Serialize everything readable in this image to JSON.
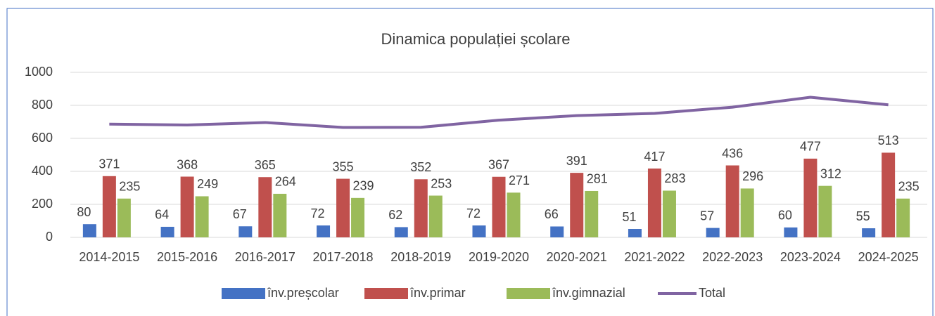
{
  "chart_data": {
    "type": "bar",
    "title": "Dinamica populației școlare",
    "categories": [
      "2014-2015",
      "2015-2016",
      "2016-2017",
      "2017-2018",
      "2018-2019",
      "2019-2020",
      "2020-2021",
      "2021-2022",
      "2022-2023",
      "2023-2024",
      "2024-2025"
    ],
    "series": [
      {
        "name": "înv.preșcolar",
        "color": "#4472c4",
        "type": "bar",
        "values": [
          80,
          64,
          67,
          72,
          62,
          72,
          66,
          51,
          57,
          60,
          55
        ]
      },
      {
        "name": "înv.primar",
        "color": "#c0504d",
        "type": "bar",
        "values": [
          371,
          368,
          365,
          355,
          352,
          367,
          391,
          417,
          436,
          477,
          513
        ]
      },
      {
        "name": "înv.gimnazial",
        "color": "#9bbb59",
        "type": "bar",
        "values": [
          235,
          249,
          264,
          239,
          253,
          271,
          281,
          283,
          296,
          312,
          235
        ]
      },
      {
        "name": "Total",
        "color": "#8064a2",
        "type": "line",
        "values": [
          686,
          681,
          696,
          666,
          667,
          710,
          738,
          751,
          789,
          849,
          803
        ]
      }
    ],
    "ylim": [
      0,
      1000
    ],
    "yticks": [
      0,
      200,
      400,
      600,
      800,
      1000
    ],
    "grid": true,
    "legend": "bottom",
    "data_labels": [
      "înv.preșcolar",
      "înv.primar",
      "înv.gimnazial"
    ]
  }
}
